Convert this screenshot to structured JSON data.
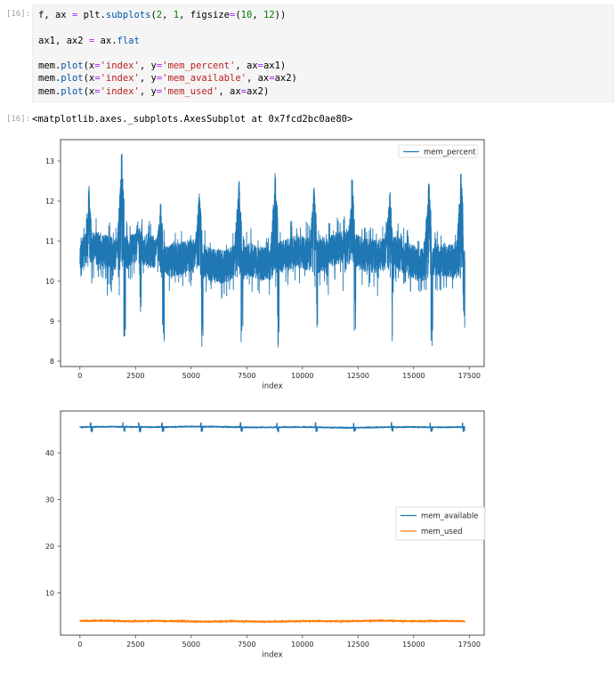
{
  "notebook": {
    "input_prompt": "[16]:",
    "output_prompt": "[16]:",
    "output_text": "<matplotlib.axes._subplots.AxesSubplot at 0x7fcd2bc0ae80>",
    "code_lines": [
      [
        [
          "f, ax ",
          "p"
        ],
        [
          "=",
          "o"
        ],
        [
          " plt.",
          "p"
        ],
        [
          "subplots",
          "f"
        ],
        [
          "(",
          "p"
        ],
        [
          "2",
          "n"
        ],
        [
          ", ",
          "p"
        ],
        [
          "1",
          "n"
        ],
        [
          ", figsize",
          "p"
        ],
        [
          "=",
          "o"
        ],
        [
          "(",
          "p"
        ],
        [
          "10",
          "n"
        ],
        [
          ", ",
          "p"
        ],
        [
          "12",
          "n"
        ],
        [
          "))",
          "p"
        ]
      ],
      [],
      [
        [
          "ax1, ax2 ",
          "p"
        ],
        [
          "=",
          "o"
        ],
        [
          " ax.",
          "p"
        ],
        [
          "flat",
          "f"
        ]
      ],
      [],
      [
        [
          "mem.",
          "p"
        ],
        [
          "plot",
          "f"
        ],
        [
          "(x",
          "p"
        ],
        [
          "=",
          "o"
        ],
        [
          "'index'",
          "s"
        ],
        [
          ", y",
          "p"
        ],
        [
          "=",
          "o"
        ],
        [
          "'mem_percent'",
          "s"
        ],
        [
          ", ax",
          "p"
        ],
        [
          "=",
          "o"
        ],
        [
          "ax1)",
          "p"
        ]
      ],
      [
        [
          "mem.",
          "p"
        ],
        [
          "plot",
          "f"
        ],
        [
          "(x",
          "p"
        ],
        [
          "=",
          "o"
        ],
        [
          "'index'",
          "s"
        ],
        [
          ", y",
          "p"
        ],
        [
          "=",
          "o"
        ],
        [
          "'mem_available'",
          "s"
        ],
        [
          ", ax",
          "p"
        ],
        [
          "=",
          "o"
        ],
        [
          "ax2)",
          "p"
        ]
      ],
      [
        [
          "mem.",
          "p"
        ],
        [
          "plot",
          "f"
        ],
        [
          "(x",
          "p"
        ],
        [
          "=",
          "o"
        ],
        [
          "'index'",
          "s"
        ],
        [
          ", y",
          "p"
        ],
        [
          "=",
          "o"
        ],
        [
          "'mem_used'",
          "s"
        ],
        [
          ", ax",
          "p"
        ],
        [
          "=",
          "o"
        ],
        [
          "ax2)",
          "p"
        ]
      ]
    ]
  },
  "colors": {
    "series_blue": "#1f77b4",
    "series_orange": "#ff7f0e",
    "cell_background": "#f5f5f5",
    "prompt_gray": "#9e9e9e",
    "syntax_operator": "#aa22ff",
    "syntax_property": "#0055aa",
    "syntax_number": "#008000",
    "syntax_string": "#ba2121"
  },
  "chart_data": [
    {
      "type": "line",
      "title": "",
      "xlabel": "index",
      "ylabel": "",
      "grid": false,
      "x_ticks": [
        0,
        2500,
        5000,
        7500,
        10000,
        12500,
        15000,
        17500
      ],
      "y_ticks": [
        8,
        9,
        10,
        11,
        12,
        13
      ],
      "xlim": [
        -870,
        18170
      ],
      "ylim": [
        7.87,
        13.53
      ],
      "legend": {
        "position": "upper right",
        "entries": [
          {
            "label": "mem_percent",
            "color": "#1f77b4"
          }
        ]
      },
      "series": [
        {
          "name": "mem_percent",
          "color": "#1f77b4",
          "x_max": 17300,
          "n_points": 5200,
          "baseline": 10.6,
          "noise": 0.42,
          "wide_prob": 0.12,
          "wander": [
            0.16,
            1600,
            0.5,
            0.09,
            360
          ],
          "clamp": [
            8.15,
            13.22
          ],
          "rare_low": {
            "prob": 0.002,
            "base": 9.62,
            "range": 0.35
          },
          "bursts": [
            {
              "x": 480,
              "peak": 12.4,
              "dip": 9.6
            },
            {
              "x": 1944,
              "peak": 13.2,
              "dip": 8.6
            },
            {
              "x": 2650,
              "peak": 11.4,
              "dip": 9.2
            },
            {
              "x": 3690,
              "peak": 11.95,
              "dip": 8.2
            },
            {
              "x": 5435,
              "peak": 12.2,
              "dip": 8.3
            },
            {
              "x": 7220,
              "peak": 12.5,
              "dip": 8.25
            },
            {
              "x": 8850,
              "peak": 12.7,
              "dip": 8.3
            },
            {
              "x": 10590,
              "peak": 12.35,
              "dip": 8.2
            },
            {
              "x": 12300,
              "peak": 12.6,
              "dip": 8.4
            },
            {
              "x": 14000,
              "peak": 12.25,
              "dip": 8.3
            },
            {
              "x": 15750,
              "peak": 12.45,
              "dip": 8.2
            },
            {
              "x": 17200,
              "peak": 12.7,
              "dip": 8.3
            }
          ]
        }
      ]
    },
    {
      "type": "line",
      "title": "",
      "xlabel": "index",
      "ylabel": "",
      "grid": false,
      "x_ticks": [
        0,
        2500,
        5000,
        7500,
        10000,
        12500,
        15000,
        17500
      ],
      "y_ticks": [
        10,
        20,
        30,
        40
      ],
      "xlim": [
        -870,
        18170
      ],
      "ylim": [
        0.95,
        48.95
      ],
      "legend": {
        "position": "center right",
        "entries": [
          {
            "label": "mem_available",
            "color": "#1f77b4"
          },
          {
            "label": "mem_used",
            "color": "#ff7f0e"
          }
        ]
      },
      "series": [
        {
          "name": "mem_available",
          "color": "#1f77b4",
          "x_max": 17300,
          "n_points": 3400,
          "baseline": 45.5,
          "noise": 0.11,
          "wide_prob": 0.08,
          "wander": [
            0.07,
            2500,
            0,
            0.05,
            700
          ],
          "clamp": [
            44.35,
            46.7
          ],
          "event_up": 46.5,
          "event_down": 44.5,
          "events": [
            480,
            1944,
            2650,
            3690,
            5435,
            7220,
            8850,
            10590,
            12300,
            14000,
            15750,
            17200
          ]
        },
        {
          "name": "mem_used",
          "color": "#ff7f0e",
          "x_max": 17300,
          "n_points": 3400,
          "baseline": 3.95,
          "noise": 0.16,
          "wide_prob": 0.1,
          "wander": [
            0.06,
            2000,
            1,
            0.04,
            500
          ],
          "clamp": [
            3.4,
            4.55
          ]
        }
      ]
    }
  ]
}
